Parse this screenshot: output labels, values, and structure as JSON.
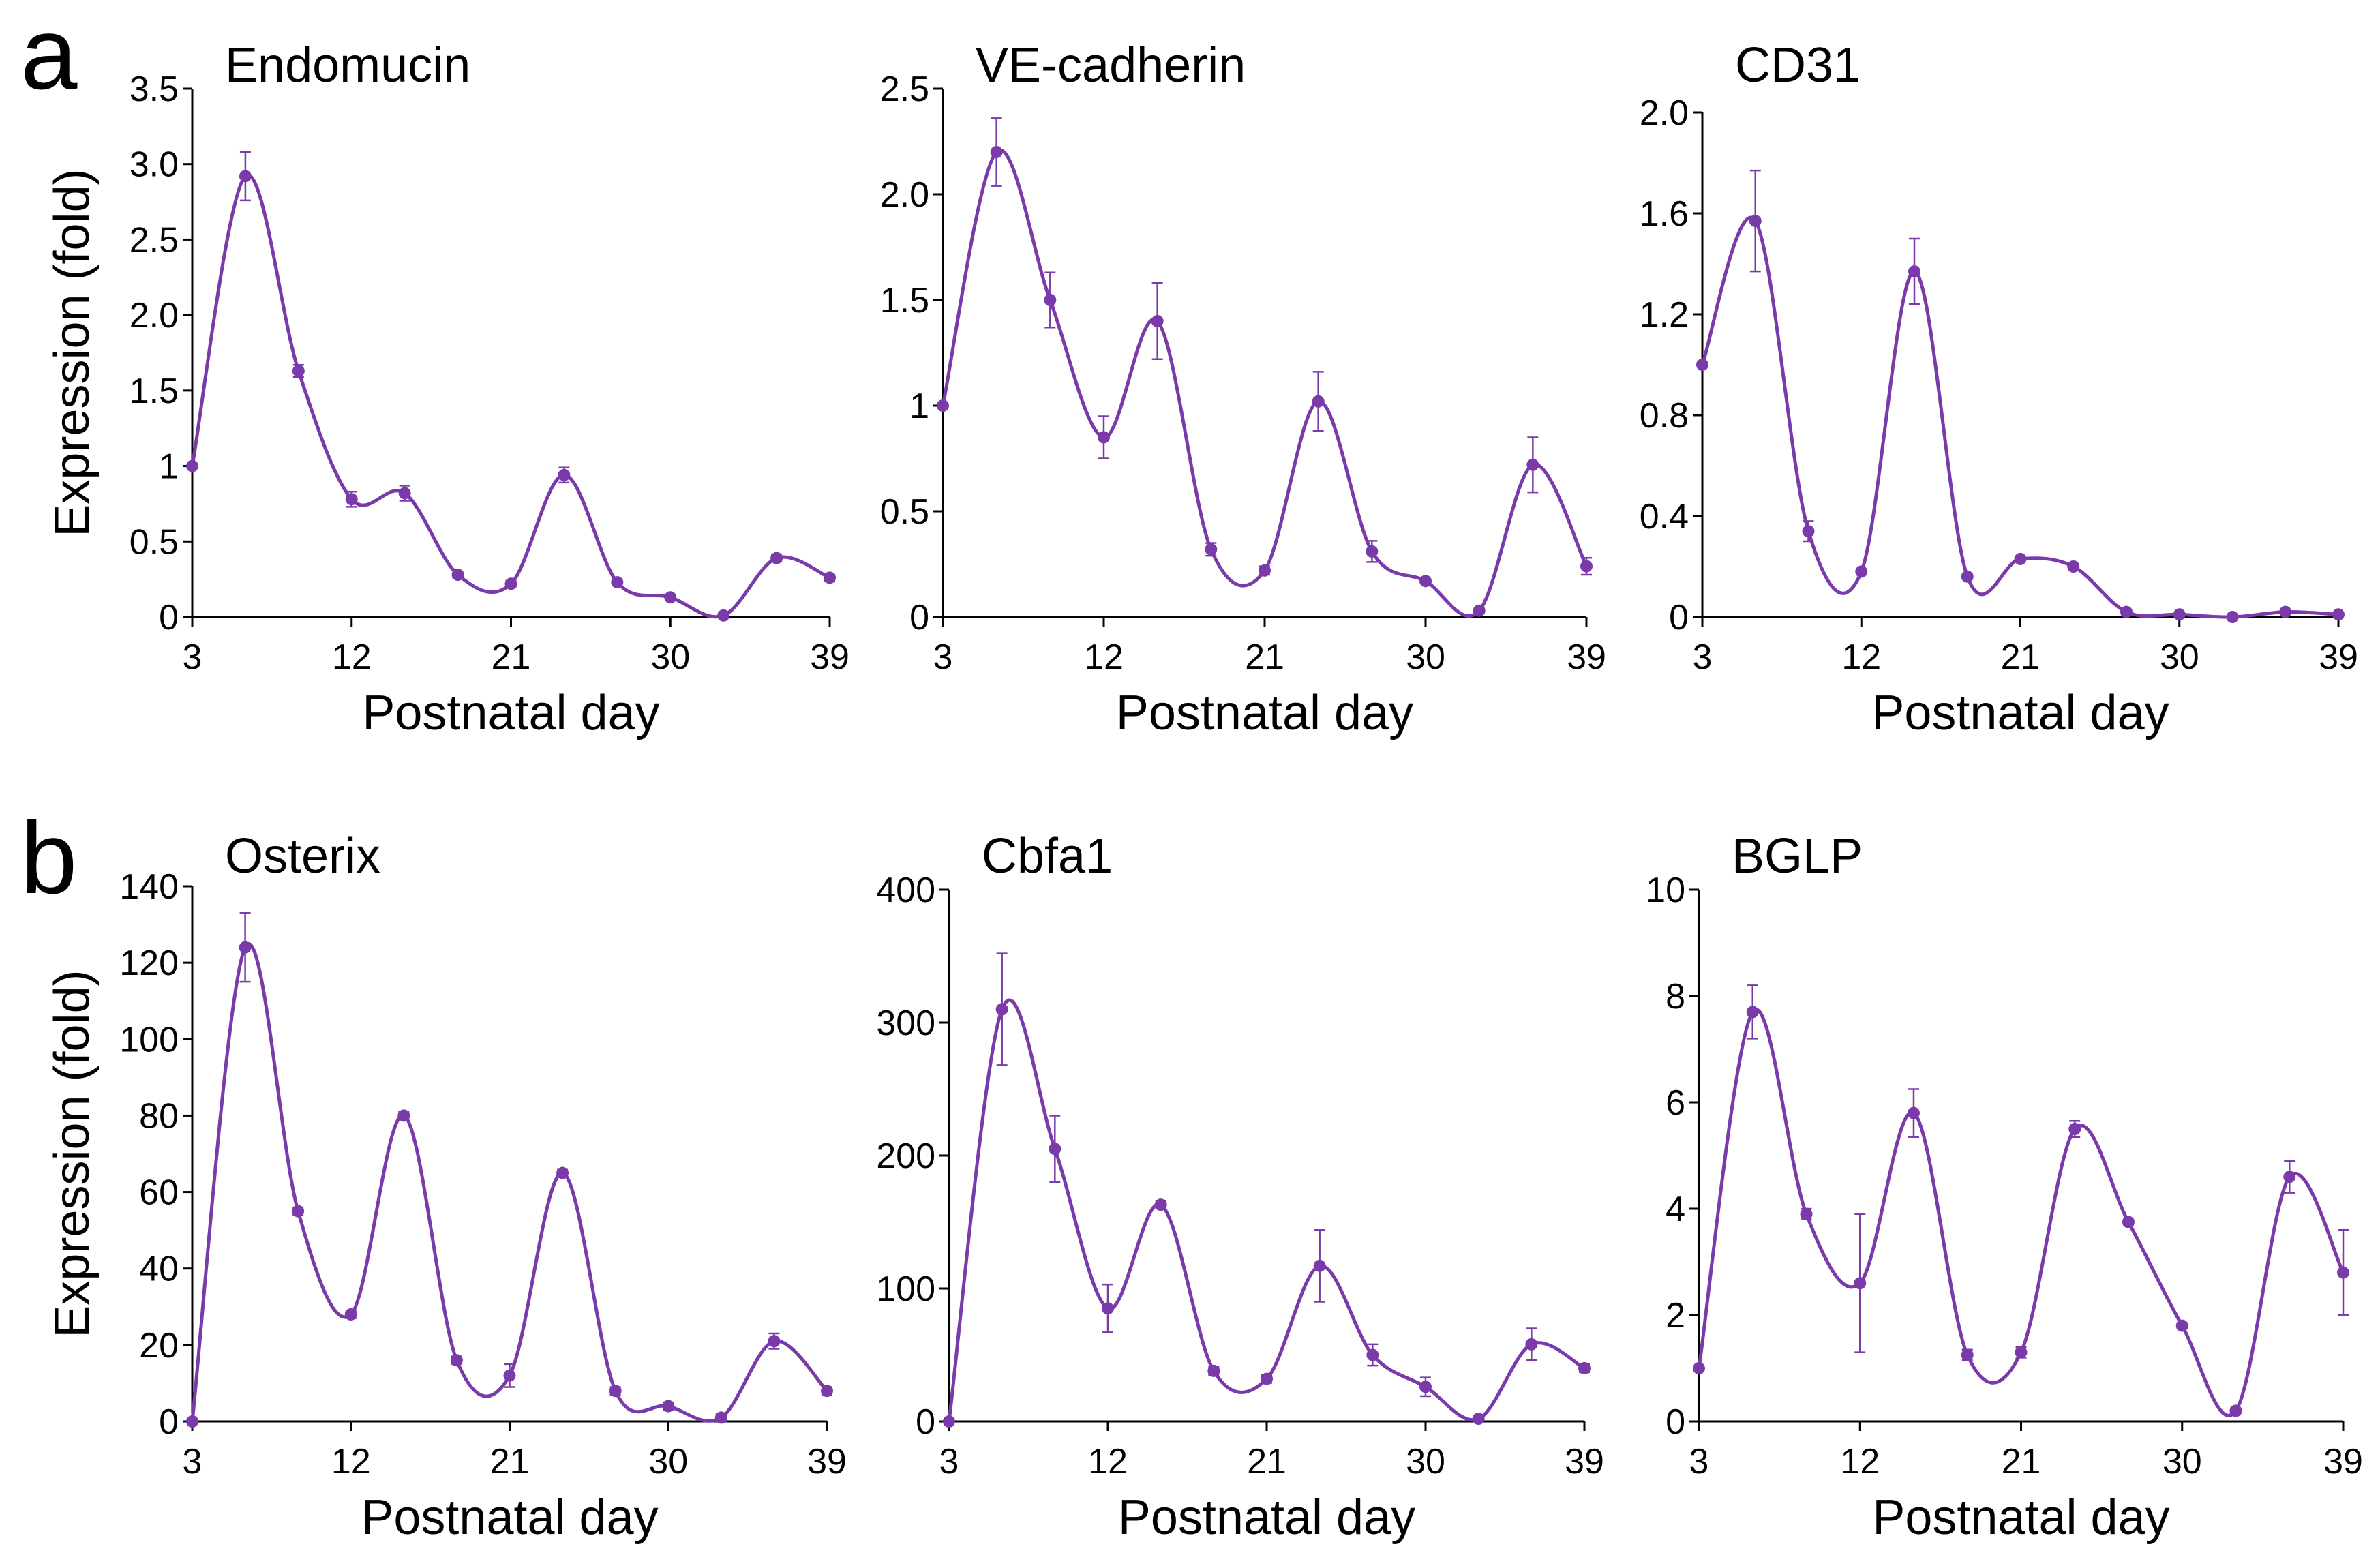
{
  "figure": {
    "panel_labels": [
      "a",
      "b"
    ],
    "series_color": "#7a3aaa"
  },
  "chart_data": [
    {
      "type": "line",
      "panel": "a",
      "title": "Endomucin",
      "xlabel": "Postnatal day",
      "ylabel": "Expression (fold)",
      "xlim": [
        3,
        39
      ],
      "ylim": [
        0,
        3.5
      ],
      "xticks": [
        3,
        12,
        21,
        30,
        39
      ],
      "yticks": [
        0,
        0.5,
        1,
        1.5,
        2.0,
        2.5,
        3.0,
        3.5
      ],
      "ytick_labels": [
        "0",
        "0.5",
        "1",
        "1.5",
        "2.0",
        "2.5",
        "3.0",
        "3.5"
      ],
      "x": [
        3,
        6,
        9,
        12,
        15,
        18,
        21,
        24,
        27,
        30,
        33,
        36,
        39
      ],
      "values": [
        1.0,
        2.92,
        1.63,
        0.78,
        0.82,
        0.28,
        0.22,
        0.94,
        0.23,
        0.13,
        0.01,
        0.39,
        0.26
      ],
      "errors": [
        0.0,
        0.16,
        0.04,
        0.05,
        0.05,
        0.02,
        0.02,
        0.05,
        0.02,
        0.01,
        0.01,
        0.02,
        0.02
      ]
    },
    {
      "type": "line",
      "panel": "a",
      "title": "VE-cadherin",
      "xlabel": "Postnatal day",
      "ylabel": "",
      "xlim": [
        3,
        39
      ],
      "ylim": [
        0,
        2.5
      ],
      "xticks": [
        3,
        12,
        21,
        30,
        39
      ],
      "yticks": [
        0,
        0.5,
        1,
        1.5,
        2.0,
        2.5
      ],
      "ytick_labels": [
        "0",
        "0.5",
        "1",
        "1.5",
        "2.0",
        "2.5"
      ],
      "x": [
        3,
        6,
        9,
        12,
        15,
        18,
        21,
        24,
        27,
        30,
        33,
        36,
        39
      ],
      "values": [
        1.0,
        2.2,
        1.5,
        0.85,
        1.4,
        0.32,
        0.22,
        1.02,
        0.31,
        0.17,
        0.03,
        0.72,
        0.24
      ],
      "errors": [
        0.0,
        0.16,
        0.13,
        0.1,
        0.18,
        0.03,
        0.02,
        0.14,
        0.05,
        0.01,
        0.01,
        0.13,
        0.04
      ]
    },
    {
      "type": "line",
      "panel": "a",
      "title": "CD31",
      "xlabel": "Postnatal day",
      "ylabel": "",
      "xlim": [
        3,
        39
      ],
      "ylim": [
        0,
        2.0
      ],
      "xticks": [
        3,
        12,
        21,
        30,
        39
      ],
      "yticks": [
        0,
        0.4,
        0.8,
        1.2,
        1.6,
        2.0
      ],
      "ytick_labels": [
        "0",
        "0.4",
        "0.8",
        "1.2",
        "1.6",
        "2.0"
      ],
      "x": [
        3,
        6,
        9,
        12,
        15,
        18,
        21,
        24,
        27,
        30,
        33,
        36,
        39
      ],
      "values": [
        1.0,
        1.57,
        0.34,
        0.18,
        1.37,
        0.16,
        0.23,
        0.2,
        0.02,
        0.01,
        0.0,
        0.02,
        0.01
      ],
      "errors": [
        0.0,
        0.2,
        0.04,
        0.01,
        0.13,
        0.01,
        0.01,
        0.01,
        0.01,
        0.0,
        0.0,
        0.0,
        0.0
      ]
    },
    {
      "type": "line",
      "panel": "b",
      "title": "Osterix",
      "xlabel": "Postnatal day",
      "ylabel": "Expression (fold)",
      "xlim": [
        3,
        39
      ],
      "ylim": [
        0,
        140
      ],
      "xticks": [
        3,
        12,
        21,
        30,
        39
      ],
      "yticks": [
        0,
        20,
        40,
        60,
        80,
        100,
        120,
        140
      ],
      "ytick_labels": [
        "0",
        "20",
        "40",
        "60",
        "80",
        "100",
        "120",
        "140"
      ],
      "x": [
        3,
        6,
        9,
        12,
        15,
        18,
        21,
        24,
        27,
        30,
        33,
        36,
        39
      ],
      "values": [
        0,
        124,
        55,
        28,
        80,
        16,
        12,
        65,
        8,
        4,
        1,
        21,
        8
      ],
      "errors": [
        0,
        9,
        1,
        1,
        1,
        1,
        3,
        1,
        1,
        1,
        1,
        2,
        1
      ]
    },
    {
      "type": "line",
      "panel": "b",
      "title": "Cbfa1",
      "xlabel": "Postnatal day",
      "ylabel": "",
      "xlim": [
        3,
        39
      ],
      "ylim": [
        0,
        400
      ],
      "xticks": [
        3,
        12,
        21,
        30,
        39
      ],
      "yticks": [
        0,
        100,
        200,
        300,
        400
      ],
      "ytick_labels": [
        "0",
        "100",
        "200",
        "300",
        "400"
      ],
      "x": [
        3,
        6,
        9,
        12,
        15,
        18,
        21,
        24,
        27,
        30,
        33,
        36,
        39
      ],
      "values": [
        0,
        310,
        205,
        85,
        163,
        38,
        32,
        117,
        50,
        26,
        2,
        58,
        40
      ],
      "errors": [
        0,
        42,
        25,
        18,
        3,
        3,
        3,
        27,
        8,
        7,
        2,
        12,
        3
      ]
    },
    {
      "type": "line",
      "panel": "b",
      "title": "BGLP",
      "xlabel": "Postnatal day",
      "ylabel": "",
      "xlim": [
        3,
        39
      ],
      "ylim": [
        0,
        10
      ],
      "xticks": [
        3,
        12,
        21,
        30,
        39
      ],
      "yticks": [
        0,
        2,
        4,
        6,
        8,
        10
      ],
      "ytick_labels": [
        "0",
        "2",
        "4",
        "6",
        "8",
        "10"
      ],
      "x": [
        3,
        6,
        9,
        12,
        15,
        18,
        21,
        24,
        27,
        30,
        33,
        36,
        39
      ],
      "values": [
        1.0,
        7.7,
        3.9,
        2.6,
        5.8,
        1.25,
        1.3,
        5.5,
        3.75,
        1.8,
        0.2,
        4.6,
        2.8
      ],
      "errors": [
        0.0,
        0.5,
        0.1,
        1.3,
        0.45,
        0.1,
        0.1,
        0.15,
        0.05,
        0.05,
        0.05,
        0.3,
        0.8
      ]
    }
  ]
}
